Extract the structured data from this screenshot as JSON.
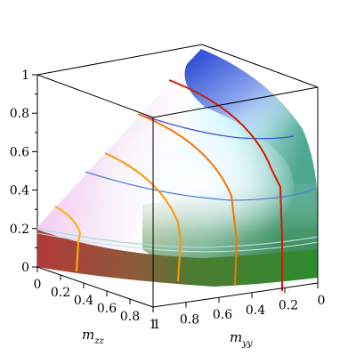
{
  "chart_data": {
    "type": "surface3d",
    "title": "",
    "axes": {
      "z": {
        "ticks": [
          "0",
          "0.2",
          "0.4",
          "0.6",
          "0.8",
          "1"
        ],
        "range": [
          0,
          1
        ]
      },
      "x": {
        "label_main": "m",
        "label_sub": "zz",
        "ticks": [
          "0",
          "0.2",
          "0.4",
          "0.6",
          "0.8",
          "1"
        ],
        "range": [
          0,
          1
        ]
      },
      "y": {
        "label_main": "m",
        "label_sub": "yy",
        "ticks": [
          "1",
          "0.8",
          "0.6",
          "0.4",
          "0.2",
          "0"
        ],
        "range": [
          1,
          0
        ]
      }
    },
    "surface": {
      "shading": "color-by-normal",
      "colors": {
        "red_face": "#b23a3a",
        "green_face": "#2e8b2e",
        "pink_top": "#f2b6f0",
        "blue_top": "#5a6fd8",
        "white_highlight": "#ffffff",
        "cyan_mid": "#56c6b0"
      }
    },
    "contours": {
      "orange_red_family": [
        "#ffb000",
        "#ff9500",
        "#ff7000",
        "#e83c00",
        "#d41a00"
      ],
      "blue_family": [
        "#3656d8",
        "#4d78e0",
        "#70b0e6",
        "#a3d6de"
      ]
    },
    "grid": false,
    "legend": "none"
  }
}
